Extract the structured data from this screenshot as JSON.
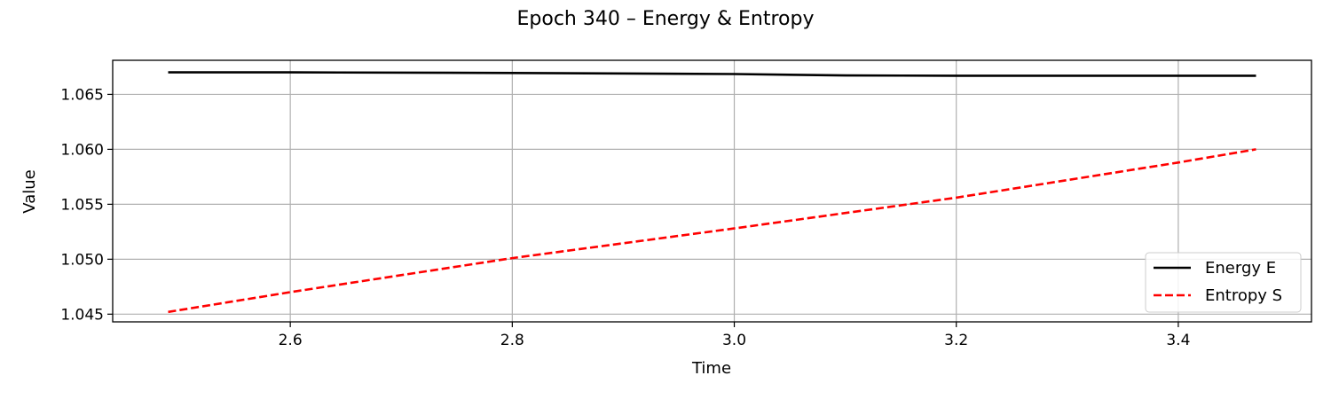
{
  "chart_data": {
    "type": "line",
    "title": "Epoch 340 – Energy & Entropy",
    "xlabel": "Time",
    "ylabel": "Value",
    "xlim": [
      2.44,
      3.52
    ],
    "ylim": [
      1.0443,
      1.0681
    ],
    "xticks": [
      2.6,
      2.8,
      3.0,
      3.2,
      3.4
    ],
    "xtick_labels": [
      "2.6",
      "2.8",
      "3.0",
      "3.2",
      "3.4"
    ],
    "yticks": [
      1.045,
      1.05,
      1.055,
      1.06,
      1.065
    ],
    "ytick_labels": [
      "1.045",
      "1.050",
      "1.055",
      "1.060",
      "1.065"
    ],
    "grid": true,
    "legend_position": "lower-right",
    "series": [
      {
        "name": "Energy E",
        "color": "#000000",
        "style": "solid",
        "x": [
          2.49,
          2.6,
          2.8,
          3.0,
          3.1,
          3.2,
          3.3,
          3.4,
          3.47
        ],
        "y": [
          1.067,
          1.067,
          1.06695,
          1.06685,
          1.06672,
          1.0667,
          1.0667,
          1.0667,
          1.0667
        ]
      },
      {
        "name": "Entropy S",
        "color": "#ff0000",
        "style": "dashed",
        "x": [
          2.49,
          2.6,
          2.8,
          3.0,
          3.2,
          3.4,
          3.47
        ],
        "y": [
          1.0452,
          1.047,
          1.0501,
          1.0528,
          1.0556,
          1.0588,
          1.06
        ]
      }
    ]
  }
}
